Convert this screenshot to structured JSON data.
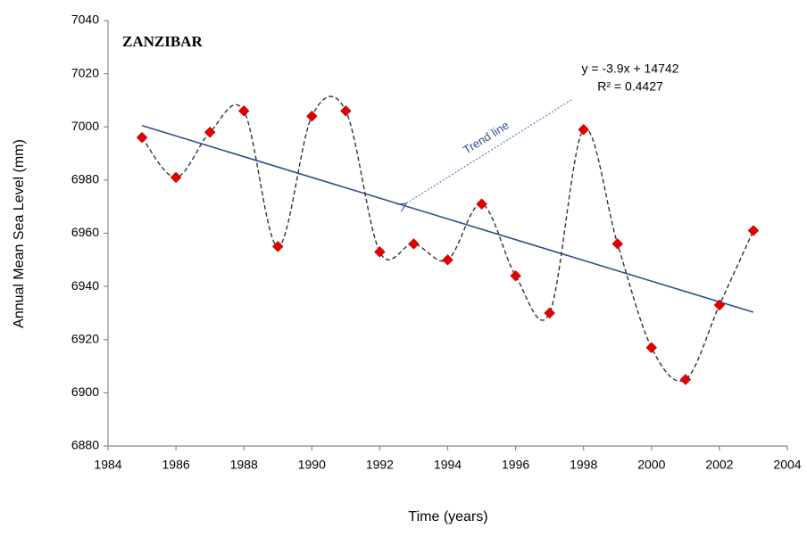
{
  "chart_data": {
    "type": "line",
    "title": "ZANZIBAR",
    "x_label": "Time (years)",
    "y_label": "Annual Mean Sea  Level  (mm)",
    "x": [
      1985,
      1986,
      1987,
      1988,
      1989,
      1990,
      1991,
      1992,
      1993,
      1994,
      1995,
      1996,
      1997,
      1998,
      1999,
      2000,
      2001,
      2002,
      2003
    ],
    "series": [
      {
        "values": [
          6996,
          6981,
          6998,
          7006,
          6955,
          7004,
          7006,
          6953,
          6956,
          6950,
          6971,
          6944,
          6930,
          6999,
          6956,
          6917,
          6905,
          6933,
          6961
        ],
        "color": "#e00000",
        "line_color": "#333333"
      }
    ],
    "trend": {
      "x": [
        1985,
        2003
      ],
      "values": [
        7000.5,
        6930.3
      ],
      "color": "#2f4f8f",
      "equation": "y = -3.9x + 14742",
      "r2": "R² = 0.4427",
      "annotation": "Trend line"
    },
    "xlim": [
      1984,
      2004
    ],
    "xticks": [
      1984,
      1986,
      1988,
      1990,
      1992,
      1994,
      1996,
      1998,
      2000,
      2002,
      2004
    ],
    "ylim": [
      6880,
      7040
    ],
    "yticks": [
      6880,
      6900,
      6920,
      6940,
      6960,
      6980,
      7000,
      7020,
      7040
    ],
    "grid": false
  }
}
